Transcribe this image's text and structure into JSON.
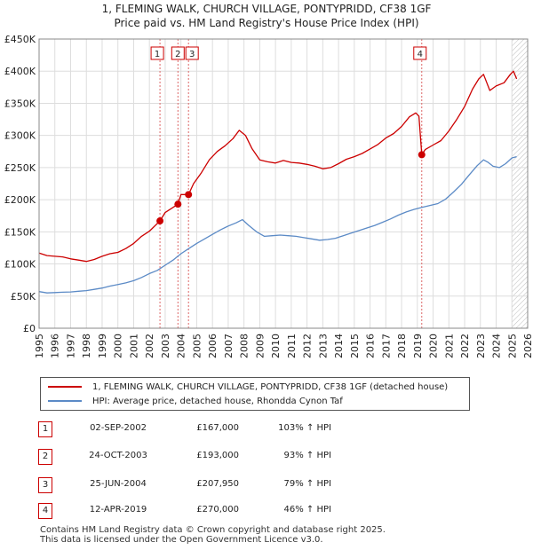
{
  "title_line1": "1, FLEMING WALK, CHURCH VILLAGE, PONTYPRIDD, CF38 1GF",
  "title_line2": "Price paid vs. HM Land Registry's House Price Index (HPI)",
  "colors": {
    "property": "#cc0000",
    "hpi": "#5b8ac6",
    "grid": "#dddddd",
    "event": "#dd6666",
    "plot_bg": "#ffffff"
  },
  "chart_data": {
    "type": "line",
    "title": "Price paid vs. HM Land Registry's House Price Index (HPI)",
    "xlabel": "",
    "ylabel": "",
    "xlim": [
      1995,
      2026
    ],
    "ylim": [
      0,
      450000
    ],
    "x_ticks": [
      "1995",
      "1996",
      "1997",
      "1998",
      "1999",
      "2000",
      "2001",
      "2002",
      "2003",
      "2004",
      "2005",
      "2006",
      "2007",
      "2008",
      "2009",
      "2010",
      "2011",
      "2012",
      "2013",
      "2014",
      "2015",
      "2016",
      "2017",
      "2018",
      "2019",
      "2020",
      "2021",
      "2022",
      "2023",
      "2024",
      "2025",
      "2026"
    ],
    "y_ticks": [
      {
        "value": 0,
        "label": "£0"
      },
      {
        "value": 50000,
        "label": "£50K"
      },
      {
        "value": 100000,
        "label": "£100K"
      },
      {
        "value": 150000,
        "label": "£150K"
      },
      {
        "value": 200000,
        "label": "£200K"
      },
      {
        "value": 250000,
        "label": "£250K"
      },
      {
        "value": 300000,
        "label": "£300K"
      },
      {
        "value": 350000,
        "label": "£350K"
      },
      {
        "value": 400000,
        "label": "£400K"
      },
      {
        "value": 450000,
        "label": "£450K"
      }
    ],
    "series": [
      {
        "name": "1, FLEMING WALK, CHURCH VILLAGE, PONTYPRIDD, CF38 1GF (detached house)",
        "color": "#cc0000",
        "points": [
          [
            1995.0,
            117000
          ],
          [
            1995.5,
            113000
          ],
          [
            1996.0,
            112000
          ],
          [
            1996.5,
            111000
          ],
          [
            1997.0,
            108000
          ],
          [
            1997.5,
            106000
          ],
          [
            1998.0,
            104000
          ],
          [
            1998.5,
            107000
          ],
          [
            1999.0,
            112000
          ],
          [
            1999.5,
            116000
          ],
          [
            2000.0,
            118000
          ],
          [
            2000.5,
            124000
          ],
          [
            2001.0,
            132000
          ],
          [
            2001.5,
            143000
          ],
          [
            2002.0,
            151000
          ],
          [
            2002.67,
            167000
          ],
          [
            2003.0,
            180000
          ],
          [
            2003.5,
            188000
          ],
          [
            2003.81,
            193000
          ],
          [
            2004.0,
            208000
          ],
          [
            2004.48,
            207950
          ],
          [
            2004.8,
            225000
          ],
          [
            2005.3,
            242000
          ],
          [
            2005.8,
            262000
          ],
          [
            2006.3,
            275000
          ],
          [
            2006.8,
            284000
          ],
          [
            2007.3,
            295000
          ],
          [
            2007.7,
            308000
          ],
          [
            2008.1,
            300000
          ],
          [
            2008.5,
            280000
          ],
          [
            2009.0,
            262000
          ],
          [
            2009.5,
            259000
          ],
          [
            2010.0,
            257000
          ],
          [
            2010.5,
            261000
          ],
          [
            2011.0,
            258000
          ],
          [
            2011.5,
            257000
          ],
          [
            2012.0,
            255000
          ],
          [
            2012.5,
            252000
          ],
          [
            2013.0,
            248000
          ],
          [
            2013.5,
            250000
          ],
          [
            2014.0,
            256000
          ],
          [
            2014.5,
            263000
          ],
          [
            2015.0,
            267000
          ],
          [
            2015.5,
            272000
          ],
          [
            2016.0,
            279000
          ],
          [
            2016.5,
            286000
          ],
          [
            2017.0,
            296000
          ],
          [
            2017.5,
            303000
          ],
          [
            2018.0,
            314000
          ],
          [
            2018.5,
            329000
          ],
          [
            2018.9,
            335000
          ],
          [
            2019.1,
            330000
          ],
          [
            2019.28,
            270000
          ],
          [
            2019.5,
            278000
          ],
          [
            2020.0,
            285000
          ],
          [
            2020.5,
            292000
          ],
          [
            2021.0,
            307000
          ],
          [
            2021.5,
            325000
          ],
          [
            2022.0,
            345000
          ],
          [
            2022.5,
            372000
          ],
          [
            2022.9,
            388000
          ],
          [
            2023.2,
            395000
          ],
          [
            2023.6,
            370000
          ],
          [
            2024.0,
            377000
          ],
          [
            2024.5,
            382000
          ],
          [
            2024.9,
            395000
          ],
          [
            2025.1,
            400000
          ],
          [
            2025.3,
            388000
          ]
        ]
      },
      {
        "name": "HPI: Average price, detached house, Rhondda Cynon Taf",
        "color": "#5b8ac6",
        "points": [
          [
            1995.0,
            57000
          ],
          [
            1995.5,
            55000
          ],
          [
            1996.0,
            55500
          ],
          [
            1996.5,
            56000
          ],
          [
            1997.0,
            56500
          ],
          [
            1997.5,
            57500
          ],
          [
            1998.0,
            58500
          ],
          [
            1998.5,
            60500
          ],
          [
            1999.0,
            62500
          ],
          [
            1999.5,
            65500
          ],
          [
            2000.0,
            68000
          ],
          [
            2000.5,
            70500
          ],
          [
            2001.0,
            74000
          ],
          [
            2001.5,
            79000
          ],
          [
            2002.0,
            85000
          ],
          [
            2002.5,
            90000
          ],
          [
            2003.0,
            98000
          ],
          [
            2003.5,
            106000
          ],
          [
            2004.0,
            116000
          ],
          [
            2004.5,
            124000
          ],
          [
            2005.0,
            132000
          ],
          [
            2005.5,
            139000
          ],
          [
            2006.0,
            146000
          ],
          [
            2006.5,
            153000
          ],
          [
            2007.0,
            159000
          ],
          [
            2007.5,
            164000
          ],
          [
            2007.9,
            169000
          ],
          [
            2008.3,
            160000
          ],
          [
            2008.8,
            150000
          ],
          [
            2009.3,
            143000
          ],
          [
            2009.8,
            144000
          ],
          [
            2010.3,
            145000
          ],
          [
            2010.8,
            144000
          ],
          [
            2011.3,
            143000
          ],
          [
            2011.8,
            141000
          ],
          [
            2012.3,
            139000
          ],
          [
            2012.8,
            137000
          ],
          [
            2013.3,
            138000
          ],
          [
            2013.8,
            140000
          ],
          [
            2014.3,
            144000
          ],
          [
            2014.8,
            148000
          ],
          [
            2015.3,
            152000
          ],
          [
            2015.8,
            156000
          ],
          [
            2016.3,
            160000
          ],
          [
            2016.8,
            165000
          ],
          [
            2017.3,
            170000
          ],
          [
            2017.8,
            176000
          ],
          [
            2018.3,
            181000
          ],
          [
            2018.8,
            185000
          ],
          [
            2019.3,
            188000
          ],
          [
            2019.8,
            191000
          ],
          [
            2020.3,
            194000
          ],
          [
            2020.8,
            201000
          ],
          [
            2021.3,
            212000
          ],
          [
            2021.8,
            224000
          ],
          [
            2022.3,
            239000
          ],
          [
            2022.8,
            253000
          ],
          [
            2023.2,
            262000
          ],
          [
            2023.5,
            258000
          ],
          [
            2023.8,
            252000
          ],
          [
            2024.2,
            250000
          ],
          [
            2024.6,
            256000
          ],
          [
            2025.0,
            265000
          ],
          [
            2025.3,
            267000
          ]
        ]
      }
    ],
    "events": [
      {
        "label": "1",
        "x": 2002.67,
        "price": 167000
      },
      {
        "label": "2",
        "x": 2003.81,
        "price": 193000
      },
      {
        "label": "3",
        "x": 2004.48,
        "price": 207950
      },
      {
        "label": "4",
        "x": 2019.28,
        "price": 270000
      }
    ],
    "hatched_from": 2025.0
  },
  "legend": {
    "property_label": "1, FLEMING WALK, CHURCH VILLAGE, PONTYPRIDD, CF38 1GF (detached house)",
    "hpi_label": "HPI: Average price, detached house, Rhondda Cynon Taf"
  },
  "transactions": [
    {
      "num": "1",
      "date": "02-SEP-2002",
      "price": "£167,000",
      "hpi": "103% ↑ HPI"
    },
    {
      "num": "2",
      "date": "24-OCT-2003",
      "price": "£193,000",
      "hpi": "93% ↑ HPI"
    },
    {
      "num": "3",
      "date": "25-JUN-2004",
      "price": "£207,950",
      "hpi": "79% ↑ HPI"
    },
    {
      "num": "4",
      "date": "12-APR-2019",
      "price": "£270,000",
      "hpi": "46% ↑ HPI"
    }
  ],
  "footer": {
    "line1": "Contains HM Land Registry data © Crown copyright and database right 2025.",
    "line2": "This data is licensed under the Open Government Licence v3.0."
  }
}
